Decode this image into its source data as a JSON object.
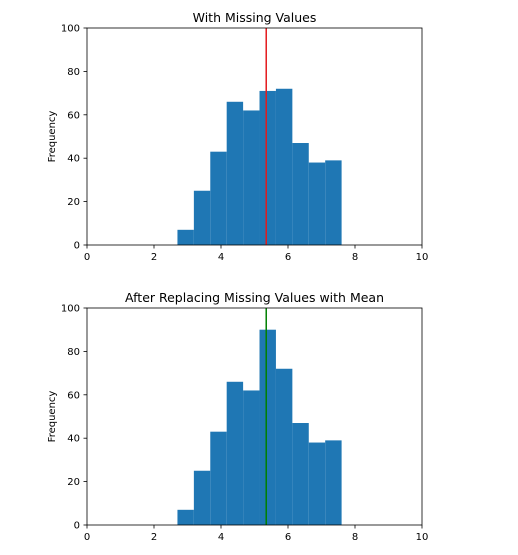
{
  "chart_data": [
    {
      "type": "bar",
      "title": "With Missing Values",
      "xlabel": "",
      "ylabel": "Frequency",
      "xlim": [
        0,
        10
      ],
      "ylim": [
        0,
        100
      ],
      "xticks": [
        0,
        2,
        4,
        6,
        8,
        10
      ],
      "yticks": [
        0,
        20,
        40,
        60,
        80,
        100
      ],
      "bins": [
        {
          "x0": 2.7,
          "x1": 3.19,
          "count": 7
        },
        {
          "x0": 3.19,
          "x1": 3.68,
          "count": 25
        },
        {
          "x0": 3.68,
          "x1": 4.17,
          "count": 43
        },
        {
          "x0": 4.17,
          "x1": 4.66,
          "count": 66
        },
        {
          "x0": 4.66,
          "x1": 5.15,
          "count": 62
        },
        {
          "x0": 5.15,
          "x1": 5.64,
          "count": 71
        },
        {
          "x0": 5.64,
          "x1": 6.13,
          "count": 72
        },
        {
          "x0": 6.13,
          "x1": 6.62,
          "count": 47
        },
        {
          "x0": 6.62,
          "x1": 7.11,
          "count": 38
        },
        {
          "x0": 7.11,
          "x1": 7.6,
          "count": 39
        }
      ],
      "bar_color": "#1f77b4",
      "vline": {
        "x": 5.35,
        "color": "#e41a1c"
      },
      "grid": false,
      "legend": "none"
    },
    {
      "type": "bar",
      "title": "After Replacing Missing Values with Mean",
      "xlabel": "",
      "ylabel": "Frequency",
      "xlim": [
        0,
        10
      ],
      "ylim": [
        0,
        100
      ],
      "xticks": [
        0,
        2,
        4,
        6,
        8,
        10
      ],
      "yticks": [
        0,
        20,
        40,
        60,
        80,
        100
      ],
      "bins": [
        {
          "x0": 2.7,
          "x1": 3.19,
          "count": 7
        },
        {
          "x0": 3.19,
          "x1": 3.68,
          "count": 25
        },
        {
          "x0": 3.68,
          "x1": 4.17,
          "count": 43
        },
        {
          "x0": 4.17,
          "x1": 4.66,
          "count": 66
        },
        {
          "x0": 4.66,
          "x1": 5.15,
          "count": 62
        },
        {
          "x0": 5.15,
          "x1": 5.64,
          "count": 90
        },
        {
          "x0": 5.64,
          "x1": 6.13,
          "count": 72
        },
        {
          "x0": 6.13,
          "x1": 6.62,
          "count": 47
        },
        {
          "x0": 6.62,
          "x1": 7.11,
          "count": 38
        },
        {
          "x0": 7.11,
          "x1": 7.6,
          "count": 39
        }
      ],
      "bar_color": "#1f77b4",
      "vline": {
        "x": 5.35,
        "color": "#008000"
      },
      "grid": false,
      "legend": "none"
    }
  ]
}
